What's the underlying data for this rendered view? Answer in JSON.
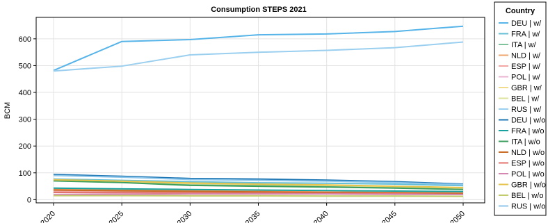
{
  "chart_data": {
    "type": "line",
    "title": "Consumption STEPS 2021",
    "xlabel": "",
    "ylabel": "BCM",
    "x": [
      2020,
      2025,
      2030,
      2035,
      2040,
      2045,
      2050
    ],
    "x_tick_labels": [
      "2020",
      "2025",
      "2030",
      "2035",
      "2040",
      "2045",
      "2050"
    ],
    "y_ticks": [
      0,
      100,
      200,
      300,
      400,
      500,
      600
    ],
    "y_tick_labels": [
      "0",
      "100",
      "200",
      "300",
      "400",
      "500",
      "600"
    ],
    "ylim": [
      -12,
      680
    ],
    "grid": true,
    "legend": {
      "title": "Country",
      "position": "right"
    },
    "series": [
      {
        "name": "DEU | w/",
        "color": "#56B4E9",
        "values": [
          482,
          590,
          597,
          615,
          618,
          627,
          647
        ]
      },
      {
        "name": "FRA | w/",
        "color": "#64BFD6",
        "values": [
          77,
          72,
          67,
          63,
          61,
          58,
          52
        ]
      },
      {
        "name": "ITA | w/",
        "color": "#7FC29B",
        "values": [
          72,
          66,
          56,
          53,
          50,
          46,
          40
        ]
      },
      {
        "name": "NLD | w/",
        "color": "#EFA56A",
        "values": [
          40,
          35,
          33,
          31,
          29,
          27,
          25
        ]
      },
      {
        "name": "ESP | w/",
        "color": "#F2A7A4",
        "values": [
          32,
          30,
          29,
          28,
          27,
          25,
          23
        ]
      },
      {
        "name": "POL | w/",
        "color": "#E9B3D2",
        "values": [
          20,
          22,
          24,
          24,
          24,
          23,
          22
        ]
      },
      {
        "name": "GBR | w/",
        "color": "#F2DC8C",
        "values": [
          73,
          68,
          60,
          57,
          53,
          49,
          43
        ]
      },
      {
        "name": "BEL | w/",
        "color": "#DCE39A",
        "values": [
          17,
          16,
          15,
          15,
          14,
          14,
          13
        ]
      },
      {
        "name": "RUS | w/",
        "color": "#9ACFEF",
        "values": [
          480,
          498,
          540,
          550,
          557,
          567,
          588
        ]
      },
      {
        "name": "DEU | w/o",
        "color": "#1F77B4",
        "values": [
          94,
          87,
          79,
          77,
          73,
          67,
          58
        ]
      },
      {
        "name": "FRA | w/o",
        "color": "#17A2A0",
        "values": [
          43,
          40,
          38,
          36,
          34,
          32,
          30
        ]
      },
      {
        "name": "ITA | w/o",
        "color": "#3C9E5C",
        "values": [
          70,
          64,
          53,
          50,
          47,
          43,
          38
        ]
      },
      {
        "name": "NLD | w/o",
        "color": "#C96A25",
        "values": [
          36,
          33,
          31,
          29,
          27,
          25,
          23
        ]
      },
      {
        "name": "ESP | w/o",
        "color": "#E0736E",
        "values": [
          27,
          26,
          25,
          24,
          23,
          22,
          20
        ]
      },
      {
        "name": "POL | w/o",
        "color": "#D487B0",
        "values": [
          18,
          20,
          21,
          21,
          21,
          20,
          19
        ]
      },
      {
        "name": "GBR | w/o",
        "color": "#E6C34A",
        "values": [
          74,
          69,
          62,
          58,
          55,
          50,
          45
        ]
      },
      {
        "name": "BEL | w/o",
        "color": "#C2CC6E",
        "values": [
          15,
          15,
          14,
          14,
          13,
          13,
          12
        ]
      },
      {
        "name": "RUS | w/o",
        "color": "#8CC6EA",
        "values": [
          90,
          84,
          75,
          72,
          69,
          64,
          56
        ]
      }
    ]
  }
}
